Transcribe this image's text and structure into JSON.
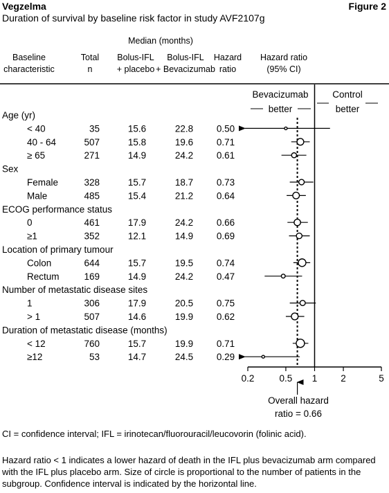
{
  "brand": "Vegzelma",
  "figure_label": "Figure 2",
  "title": "Duration of survival by baseline risk factor in study AVF2107g",
  "header": {
    "median_group": "Median (months)",
    "baseline_1": "Baseline",
    "baseline_2": "characteristic",
    "total_1": "Total",
    "total_2": "n",
    "placebo_1": "Bolus-IFL",
    "placebo_2": "+ placebo",
    "bev_1": "Bolus-IFL",
    "bev_2": "+ Bevacizumab",
    "hr_1": "Hazard",
    "hr_2": "ratio",
    "ci_1": "Hazard ratio",
    "ci_2": "(95% CI)"
  },
  "favours": {
    "left_1": "Bevacizumab",
    "left_2": "better",
    "right_1": "Control",
    "right_2": "better"
  },
  "overall": {
    "label_1": "Overall hazard",
    "label_2": "ratio = 0.66"
  },
  "footnote_1": "CI = confidence interval; IFL = irinotecan/fluorouracil/leucovorin (folinic acid).",
  "footnote_2": "Hazard ratio < 1 indicates a lower hazard of death in the IFL plus bevacizumab arm compared with the IFL plus placebo arm. Size of circle is proportional to the number of patients in the subgroup. Confidence interval is indicated by the horizontal line.",
  "chart_data": {
    "type": "forest",
    "x_scale": "log",
    "x_ticks": [
      0.2,
      0.5,
      1,
      2,
      5
    ],
    "x_tick_labels": [
      "0.2",
      "0.5",
      "1",
      "2",
      "5"
    ],
    "xlim": [
      0.2,
      5
    ],
    "reference_line": 1,
    "overall_hr": 0.66,
    "groups": [
      {
        "label": "Age (yr)",
        "rows": [
          {
            "label": "< 40",
            "n": "35",
            "placebo": "15.6",
            "bev": "22.8",
            "hr": "0.50",
            "ci_low": 0.2,
            "ci_high": 1.45,
            "arrow_left": true
          },
          {
            "label": "40 - 64",
            "n": "507",
            "placebo": "15.8",
            "bev": "19.6",
            "hr": "0.71",
            "ci_low": 0.57,
            "ci_high": 0.89
          },
          {
            "label": "≥ 65",
            "n": "271",
            "placebo": "14.9",
            "bev": "24.2",
            "hr": "0.61",
            "ci_low": 0.45,
            "ci_high": 0.82
          }
        ]
      },
      {
        "label": "Sex",
        "rows": [
          {
            "label": "Female",
            "n": "328",
            "placebo": "15.7",
            "bev": "18.7",
            "hr": "0.73",
            "ci_low": 0.55,
            "ci_high": 0.97
          },
          {
            "label": "Male",
            "n": "485",
            "placebo": "15.4",
            "bev": "21.2",
            "hr": "0.64",
            "ci_low": 0.51,
            "ci_high": 0.81
          }
        ]
      },
      {
        "label": "ECOG performance status",
        "rows": [
          {
            "label": "0",
            "n": "461",
            "placebo": "17.9",
            "bev": "24.2",
            "hr": "0.66",
            "ci_low": 0.52,
            "ci_high": 0.85
          },
          {
            "label": "≥1",
            "n": "352",
            "placebo": "12.1",
            "bev": "14.9",
            "hr": "0.69",
            "ci_low": 0.54,
            "ci_high": 0.89
          }
        ]
      },
      {
        "label": "Location of primary tumour",
        "rows": [
          {
            "label": "Colon",
            "n": "644",
            "placebo": "15.7",
            "bev": "19.5",
            "hr": "0.74",
            "ci_low": 0.6,
            "ci_high": 0.9
          },
          {
            "label": "Rectum",
            "n": "169",
            "placebo": "14.9",
            "bev": "24.2",
            "hr": "0.47",
            "ci_low": 0.3,
            "ci_high": 0.74
          }
        ]
      },
      {
        "label": "Number of metastatic disease sites",
        "rows": [
          {
            "label": "1",
            "n": "306",
            "placebo": "17.9",
            "bev": "20.5",
            "hr": "0.75",
            "ci_low": 0.55,
            "ci_high": 1.03
          },
          {
            "label": "> 1",
            "n": "507",
            "placebo": "14.6",
            "bev": "19.9",
            "hr": "0.62",
            "ci_low": 0.5,
            "ci_high": 0.78
          }
        ]
      },
      {
        "label": "Duration of metastatic disease (months)",
        "rows": [
          {
            "label": "< 12",
            "n": "760",
            "placebo": "15.7",
            "bev": "19.9",
            "hr": "0.71",
            "ci_low": 0.59,
            "ci_high": 0.86
          },
          {
            "label": "≥12",
            "n": "53",
            "placebo": "14.7",
            "bev": "24.5",
            "hr": "0.29",
            "ci_low": 0.2,
            "ci_high": 0.7,
            "arrow_left": true
          }
        ]
      }
    ]
  }
}
